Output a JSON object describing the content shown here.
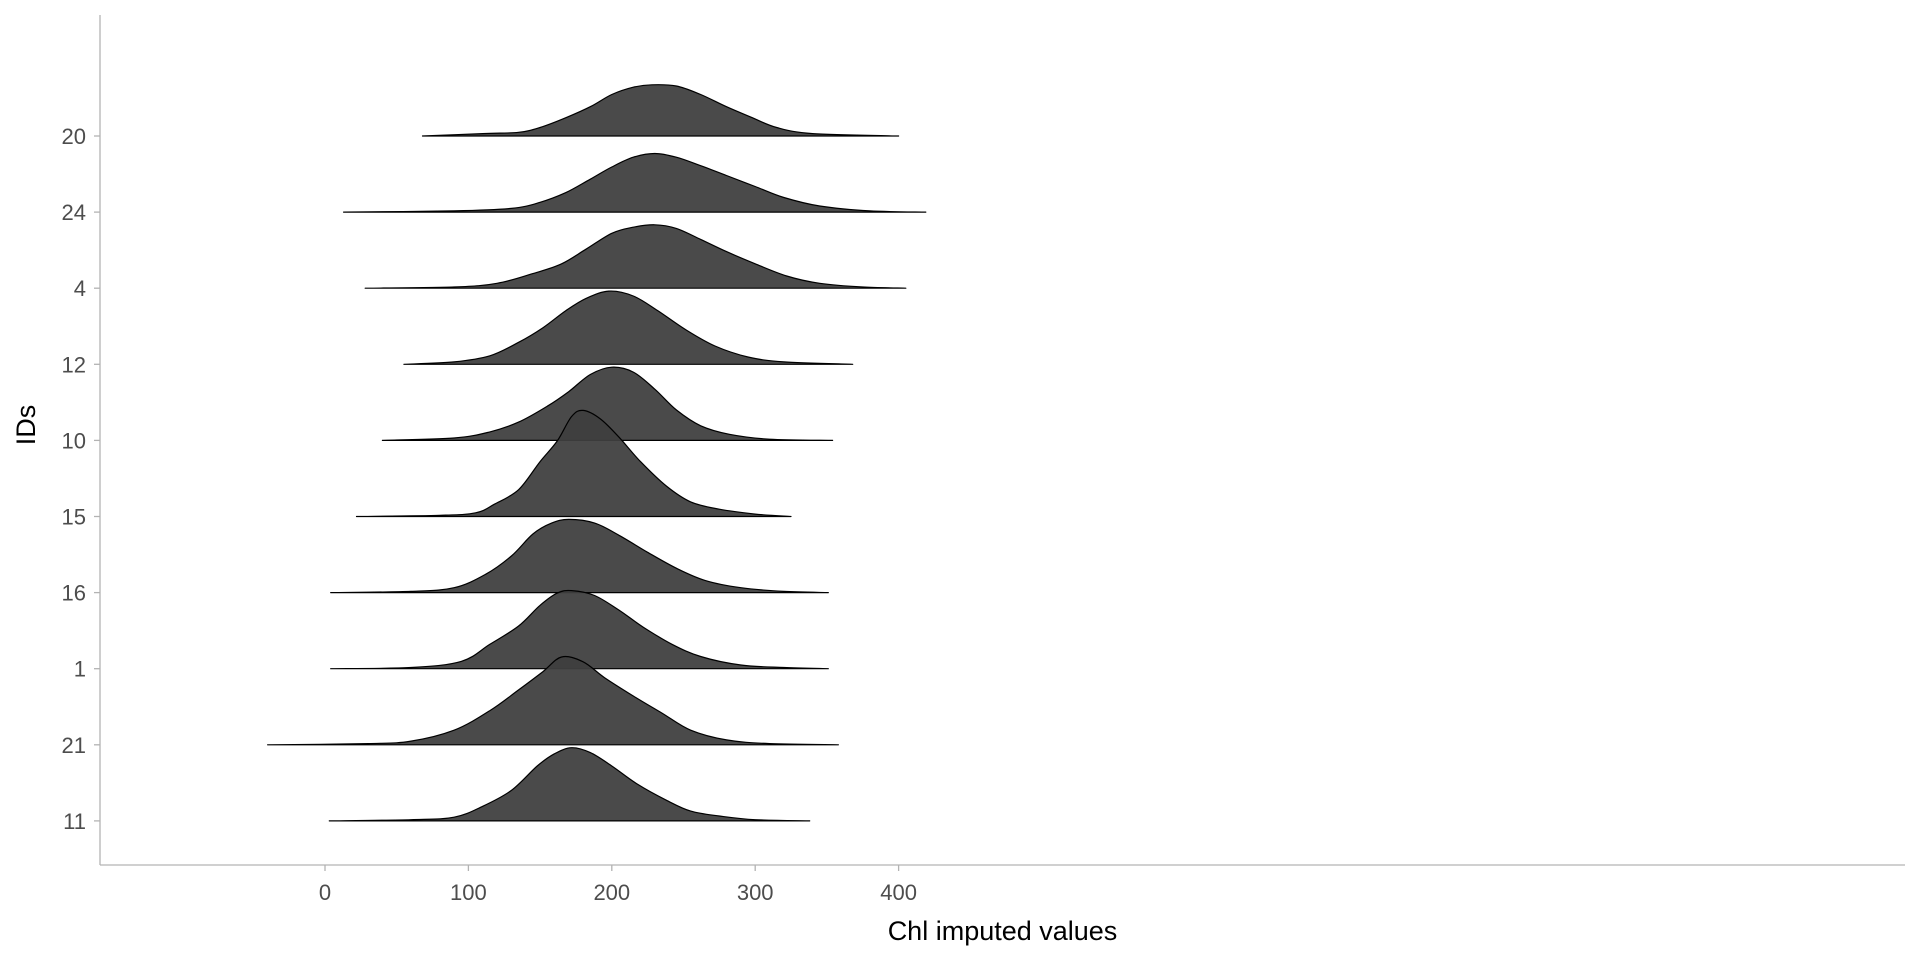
{
  "chart_data": {
    "type": "ridgeline",
    "xlabel": "Chl imputed values",
    "ylabel": "IDs",
    "xlim": [
      -62,
      442
    ],
    "xticks": [
      0,
      100,
      200,
      300,
      400
    ],
    "xtick_labels": [
      "0",
      "100",
      "200",
      "300",
      "400"
    ],
    "grid": false,
    "fill_color": "#3f3f3f",
    "line_color": "#000000",
    "series": [
      {
        "id": "11",
        "range": [
          3,
          338
        ],
        "density": [
          [
            3,
            0
          ],
          [
            60,
            0.01
          ],
          [
            90,
            0.03
          ],
          [
            110,
            0.12
          ],
          [
            130,
            0.25
          ],
          [
            148,
            0.45
          ],
          [
            160,
            0.55
          ],
          [
            172,
            0.6
          ],
          [
            185,
            0.56
          ],
          [
            200,
            0.45
          ],
          [
            218,
            0.3
          ],
          [
            238,
            0.17
          ],
          [
            255,
            0.08
          ],
          [
            275,
            0.04
          ],
          [
            300,
            0.01
          ],
          [
            338,
            0
          ]
        ]
      },
      {
        "id": "21",
        "range": [
          -40,
          358
        ],
        "density": [
          [
            -40,
            0
          ],
          [
            30,
            0.01
          ],
          [
            60,
            0.03
          ],
          [
            90,
            0.12
          ],
          [
            115,
            0.28
          ],
          [
            135,
            0.45
          ],
          [
            152,
            0.6
          ],
          [
            165,
            0.72
          ],
          [
            180,
            0.68
          ],
          [
            195,
            0.55
          ],
          [
            215,
            0.4
          ],
          [
            235,
            0.26
          ],
          [
            255,
            0.12
          ],
          [
            280,
            0.04
          ],
          [
            310,
            0.01
          ],
          [
            358,
            0
          ]
        ]
      },
      {
        "id": "1",
        "range": [
          4,
          351
        ],
        "density": [
          [
            4,
            0
          ],
          [
            60,
            0.01
          ],
          [
            95,
            0.06
          ],
          [
            115,
            0.2
          ],
          [
            135,
            0.35
          ],
          [
            150,
            0.52
          ],
          [
            162,
            0.62
          ],
          [
            172,
            0.64
          ],
          [
            188,
            0.6
          ],
          [
            205,
            0.48
          ],
          [
            222,
            0.34
          ],
          [
            242,
            0.2
          ],
          [
            262,
            0.1
          ],
          [
            290,
            0.03
          ],
          [
            320,
            0.01
          ],
          [
            351,
            0
          ]
        ]
      },
      {
        "id": "16",
        "range": [
          4,
          351
        ],
        "density": [
          [
            4,
            0
          ],
          [
            60,
            0.01
          ],
          [
            90,
            0.04
          ],
          [
            112,
            0.15
          ],
          [
            130,
            0.3
          ],
          [
            145,
            0.48
          ],
          [
            158,
            0.57
          ],
          [
            170,
            0.6
          ],
          [
            188,
            0.57
          ],
          [
            205,
            0.47
          ],
          [
            225,
            0.33
          ],
          [
            245,
            0.2
          ],
          [
            265,
            0.1
          ],
          [
            290,
            0.04
          ],
          [
            320,
            0.01
          ],
          [
            351,
            0
          ]
        ]
      },
      {
        "id": "15",
        "range": [
          22,
          325
        ],
        "density": [
          [
            22,
            0
          ],
          [
            80,
            0.01
          ],
          [
            105,
            0.03
          ],
          [
            118,
            0.1
          ],
          [
            135,
            0.22
          ],
          [
            150,
            0.45
          ],
          [
            162,
            0.62
          ],
          [
            172,
            0.82
          ],
          [
            180,
            0.87
          ],
          [
            192,
            0.8
          ],
          [
            205,
            0.65
          ],
          [
            220,
            0.45
          ],
          [
            238,
            0.25
          ],
          [
            255,
            0.12
          ],
          [
            275,
            0.06
          ],
          [
            300,
            0.02
          ],
          [
            325,
            0
          ]
        ]
      },
      {
        "id": "10",
        "range": [
          40,
          354
        ],
        "density": [
          [
            40,
            0
          ],
          [
            90,
            0.02
          ],
          [
            115,
            0.07
          ],
          [
            135,
            0.15
          ],
          [
            155,
            0.28
          ],
          [
            170,
            0.4
          ],
          [
            185,
            0.54
          ],
          [
            200,
            0.6
          ],
          [
            215,
            0.56
          ],
          [
            230,
            0.42
          ],
          [
            245,
            0.25
          ],
          [
            262,
            0.12
          ],
          [
            282,
            0.05
          ],
          [
            310,
            0.01
          ],
          [
            354,
            0
          ]
        ]
      },
      {
        "id": "12",
        "range": [
          55,
          368
        ],
        "density": [
          [
            55,
            0
          ],
          [
            90,
            0.02
          ],
          [
            115,
            0.07
          ],
          [
            135,
            0.18
          ],
          [
            152,
            0.3
          ],
          [
            168,
            0.44
          ],
          [
            182,
            0.54
          ],
          [
            198,
            0.6
          ],
          [
            215,
            0.56
          ],
          [
            232,
            0.44
          ],
          [
            252,
            0.28
          ],
          [
            272,
            0.15
          ],
          [
            295,
            0.06
          ],
          [
            320,
            0.02
          ],
          [
            368,
            0
          ]
        ]
      },
      {
        "id": "4",
        "range": [
          28,
          405
        ],
        "density": [
          [
            28,
            0
          ],
          [
            90,
            0.01
          ],
          [
            120,
            0.04
          ],
          [
            145,
            0.12
          ],
          [
            165,
            0.2
          ],
          [
            182,
            0.32
          ],
          [
            200,
            0.45
          ],
          [
            215,
            0.5
          ],
          [
            230,
            0.52
          ],
          [
            245,
            0.49
          ],
          [
            262,
            0.4
          ],
          [
            280,
            0.3
          ],
          [
            300,
            0.2
          ],
          [
            322,
            0.1
          ],
          [
            345,
            0.04
          ],
          [
            375,
            0.01
          ],
          [
            405,
            0
          ]
        ]
      },
      {
        "id": "24",
        "range": [
          13,
          419
        ],
        "density": [
          [
            13,
            0
          ],
          [
            90,
            0.01
          ],
          [
            130,
            0.03
          ],
          [
            150,
            0.08
          ],
          [
            168,
            0.16
          ],
          [
            185,
            0.27
          ],
          [
            200,
            0.37
          ],
          [
            215,
            0.45
          ],
          [
            230,
            0.48
          ],
          [
            245,
            0.45
          ],
          [
            262,
            0.38
          ],
          [
            280,
            0.3
          ],
          [
            300,
            0.21
          ],
          [
            320,
            0.12
          ],
          [
            345,
            0.05
          ],
          [
            380,
            0.01
          ],
          [
            419,
            0
          ]
        ]
      },
      {
        "id": "20",
        "range": [
          68,
          400
        ],
        "density": [
          [
            68,
            0
          ],
          [
            110,
            0.02
          ],
          [
            135,
            0.03
          ],
          [
            150,
            0.07
          ],
          [
            168,
            0.15
          ],
          [
            185,
            0.24
          ],
          [
            200,
            0.34
          ],
          [
            215,
            0.4
          ],
          [
            228,
            0.42
          ],
          [
            245,
            0.41
          ],
          [
            262,
            0.34
          ],
          [
            280,
            0.24
          ],
          [
            298,
            0.15
          ],
          [
            315,
            0.07
          ],
          [
            340,
            0.02
          ],
          [
            400,
            0
          ]
        ]
      }
    ]
  }
}
